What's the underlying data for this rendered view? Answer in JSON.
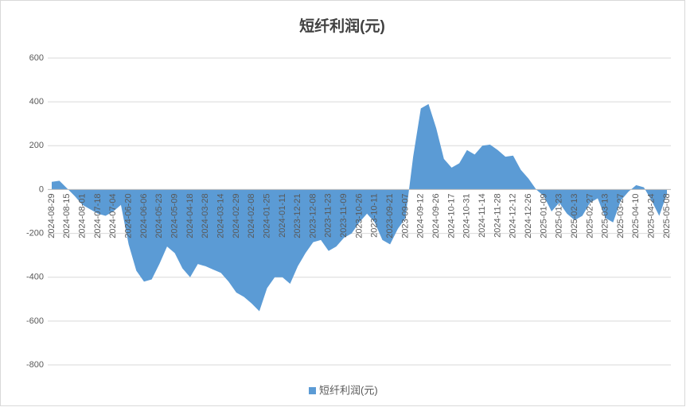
{
  "chart_data": {
    "type": "area",
    "title": "短纤利润(元)",
    "categories": [
      "2024-08-29",
      null,
      "2024-08-15",
      null,
      "2024-08-01",
      null,
      "2024-07-18",
      null,
      "2024-07-04",
      null,
      "2024-06-20",
      null,
      "2024-06-06",
      null,
      "2024-05-23",
      null,
      "2024-05-09",
      null,
      "2024-04-18",
      null,
      "2024-03-28",
      null,
      "2024-03-14",
      null,
      "2024-02-29",
      null,
      "2024-02-08",
      null,
      "2024-01-25",
      null,
      "2024-01-11",
      null,
      "2023-12-21",
      null,
      "2023-12-08",
      null,
      "2023-11-23",
      null,
      "2023-11-09",
      null,
      "2023-10-26",
      null,
      "2023-10-11",
      null,
      "2023-09-21",
      null,
      "2023-09-07",
      null,
      "2024-09-12",
      null,
      "2024-09-26",
      null,
      "2024-10-17",
      null,
      "2024-10-31",
      null,
      "2024-11-14",
      null,
      "2024-11-28",
      null,
      "2024-12-12",
      null,
      "2024-12-26",
      null,
      "2025-01-09",
      null,
      "2025-01-23",
      null,
      "2025-02-13",
      null,
      "2025-02-27",
      null,
      "2025-03-13",
      null,
      "2025-03-27",
      null,
      "2025-04-10",
      null,
      "2025-04-24",
      null,
      "2025-05-08"
    ],
    "series": [
      {
        "name": "短纤利润(元)",
        "color": "#5b9bd5",
        "values": [
          35,
          40,
          5,
          -30,
          -70,
          -90,
          -110,
          -120,
          -100,
          -70,
          -250,
          -370,
          -420,
          -410,
          -340,
          -260,
          -290,
          -360,
          -400,
          -340,
          -350,
          -365,
          -380,
          -420,
          -470,
          -490,
          -520,
          -555,
          -450,
          -400,
          -400,
          -430,
          -350,
          -290,
          -240,
          -230,
          -280,
          -260,
          -220,
          -200,
          -150,
          -110,
          -150,
          -230,
          -250,
          -180,
          -130,
          150,
          370,
          390,
          280,
          140,
          100,
          120,
          180,
          160,
          200,
          205,
          180,
          150,
          155,
          90,
          50,
          0,
          -30,
          -100,
          -60,
          -110,
          -140,
          -120,
          -60,
          -40,
          -130,
          -150,
          -50,
          -10,
          20,
          10,
          -50,
          -120,
          -20
        ]
      }
    ],
    "ylim": [
      -800,
      600
    ],
    "yticks": [
      -800,
      -600,
      -400,
      -200,
      0,
      200,
      400,
      600
    ],
    "grid": true,
    "legend": "bottom"
  }
}
